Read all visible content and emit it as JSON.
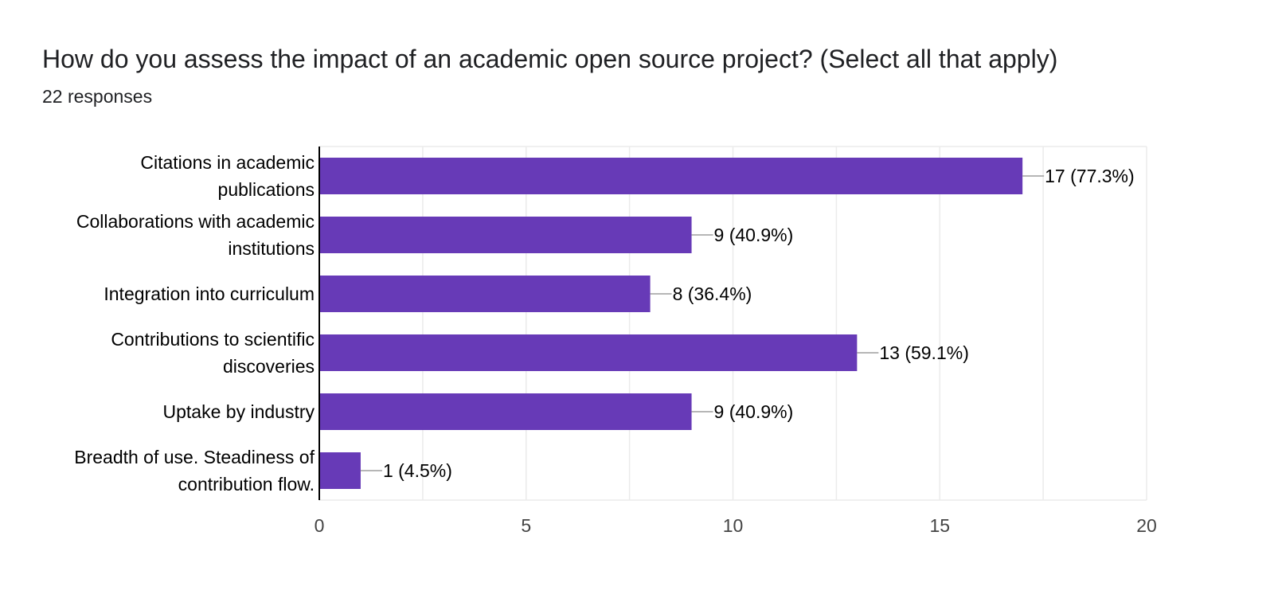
{
  "title": "How do you assess the impact of an academic open source project? (Select all that apply)",
  "subtitle": "22 responses",
  "colors": {
    "bar": "#673ab7",
    "grid": "#ebebeb",
    "axis": "#000000",
    "text": "#202124",
    "tick_text": "#444444",
    "leader": "#9e9e9e"
  },
  "chart_data": {
    "type": "bar",
    "orientation": "horizontal",
    "categories": [
      [
        "Citations in academic",
        "publications"
      ],
      [
        "Collaborations with academic",
        "institutions"
      ],
      [
        "Integration into curriculum"
      ],
      [
        "Contributions to scientific",
        "discoveries"
      ],
      [
        "Uptake by industry"
      ],
      [
        "Breadth of use. Steadiness of",
        "contribution flow."
      ]
    ],
    "values": [
      17,
      9,
      8,
      13,
      9,
      1
    ],
    "data_labels": [
      "17 (77.3%)",
      "9 (40.9%)",
      "8 (36.4%)",
      "13 (59.1%)",
      "9 (40.9%)",
      "1 (4.5%)"
    ],
    "xlim": [
      0,
      20
    ],
    "xticks": [
      0,
      5,
      10,
      15,
      20
    ],
    "grid": true
  }
}
